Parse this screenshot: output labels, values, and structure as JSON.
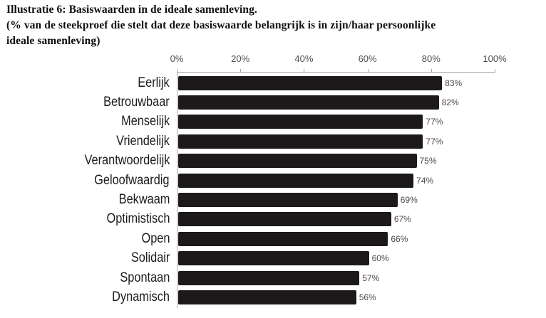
{
  "figure": {
    "title": "Illustratie 6: Basiswaarden in de ideale samenleving.",
    "subtitle_line1": "(% van de steekproef die stelt dat deze basiswaarde belangrijk is in zijn/haar persoonlijke",
    "subtitle_line2": "ideale samenleving)"
  },
  "chart_data": {
    "type": "bar",
    "orientation": "horizontal",
    "title": "Illustratie 6: Basiswaarden in de ideale samenleving.",
    "subtitle": "(% van de steekproef die stelt dat deze basiswaarde belangrijk is in zijn/haar persoonlijke ideale samenleving)",
    "categories": [
      "Eerlijk",
      "Betrouwbaar",
      "Menselijk",
      "Vriendelijk",
      "Verantwoordelijk",
      "Geloofwaardig",
      "Bekwaam",
      "Optimistisch",
      "Open",
      "Solidair",
      "Spontaan",
      "Dynamisch"
    ],
    "values": [
      83,
      82,
      77,
      77,
      75,
      74,
      69,
      67,
      66,
      60,
      57,
      56
    ],
    "value_labels": [
      "83%",
      "82%",
      "77%",
      "77%",
      "75%",
      "74%",
      "69%",
      "67%",
      "66%",
      "60%",
      "57%",
      "56%"
    ],
    "x_ticks": [
      "0%",
      "20%",
      "40%",
      "60%",
      "80%",
      "100%"
    ],
    "xlim": [
      0,
      100
    ],
    "xlabel": "",
    "ylabel": "",
    "grid": false,
    "legend": false,
    "axis_position": "top",
    "bar_color": "#1d191a",
    "axis_color": "#a6a6a6",
    "tick_label_color": "#4f4f4f",
    "value_label_color": "#4a4a4a"
  }
}
